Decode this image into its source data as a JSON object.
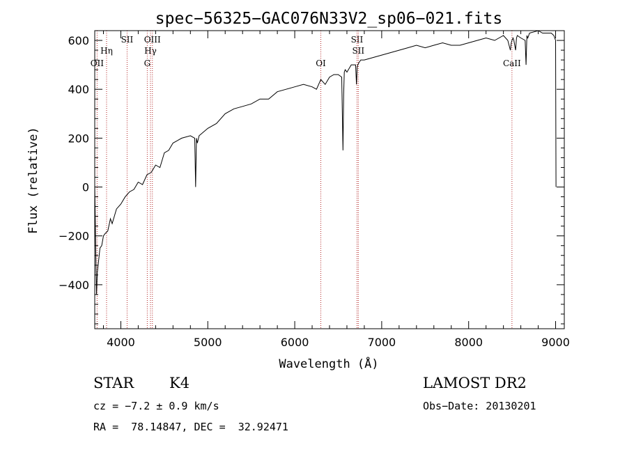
{
  "chart_data": {
    "type": "line",
    "title": "spec−56325−GAC076N33V2_sp06−021.fits",
    "xlabel": "Wavelength (Å)",
    "ylabel": "Flux (relative)",
    "xlim": [
      3700,
      9100
    ],
    "ylim": [
      -580,
      640
    ],
    "x_ticks": [
      4000,
      5000,
      6000,
      7000,
      8000,
      9000
    ],
    "y_ticks": [
      -400,
      -200,
      0,
      200,
      400,
      600
    ],
    "y_tick_labels": [
      "−400",
      "−200",
      "0",
      "200",
      "400",
      "600"
    ],
    "grid": false,
    "series": [
      {
        "x": [
          3700,
          3710,
          3720,
          3730,
          3745,
          3760,
          3780,
          3800,
          3820,
          3850,
          3880,
          3900,
          3950,
          4000,
          4050,
          4100,
          4150,
          4200,
          4250,
          4300,
          4350,
          4400,
          4450,
          4500,
          4550,
          4600,
          4700,
          4800,
          4850,
          4860,
          4870,
          4880,
          4900,
          5000,
          5100,
          5200,
          5300,
          5400,
          5500,
          5600,
          5700,
          5800,
          5900,
          6000,
          6100,
          6200,
          6250,
          6300,
          6350,
          6400,
          6450,
          6500,
          6540,
          6555,
          6563,
          6570,
          6580,
          6600,
          6650,
          6700,
          6710,
          6718,
          6725,
          6740,
          6760,
          6800,
          6900,
          7000,
          7100,
          7200,
          7300,
          7400,
          7500,
          7600,
          7700,
          7800,
          7900,
          8000,
          8100,
          8200,
          8300,
          8400,
          8450,
          8480,
          8490,
          8498,
          8510,
          8520,
          8540,
          8550,
          8560,
          8600,
          8650,
          8660,
          8670,
          8680,
          8700,
          8800,
          8850,
          8900,
          8950,
          8980,
          9000,
          9005
        ],
        "y": [
          10,
          -220,
          -440,
          -350,
          -300,
          -250,
          -240,
          -200,
          -190,
          -180,
          -130,
          -150,
          -90,
          -70,
          -40,
          -20,
          -10,
          20,
          10,
          50,
          60,
          90,
          80,
          140,
          150,
          180,
          200,
          210,
          200,
          0,
          200,
          180,
          210,
          240,
          260,
          300,
          320,
          330,
          340,
          360,
          360,
          390,
          400,
          410,
          420,
          410,
          400,
          440,
          420,
          450,
          460,
          460,
          450,
          150,
          380,
          470,
          480,
          470,
          500,
          500,
          420,
          490,
          500,
          510,
          520,
          520,
          530,
          540,
          550,
          560,
          570,
          580,
          570,
          580,
          590,
          580,
          580,
          590,
          600,
          610,
          600,
          620,
          600,
          560,
          590,
          600,
          610,
          600,
          560,
          610,
          620,
          610,
          600,
          500,
          620,
          610,
          630,
          640,
          630,
          630,
          630,
          620,
          600,
          0
        ]
      }
    ],
    "line_markers": [
      {
        "x": 3727,
        "label": "OII",
        "row": 3
      },
      {
        "x": 3836,
        "label": "Hη",
        "row": 2
      },
      {
        "x": 4072,
        "label": "SII",
        "row": 1
      },
      {
        "x": 4304,
        "label": "G",
        "row": 3
      },
      {
        "x": 4341,
        "label": "Hγ",
        "row": 2
      },
      {
        "x": 4363,
        "label": "OIII",
        "row": 1
      },
      {
        "x": 6300,
        "label": "OI",
        "row": 3
      },
      {
        "x": 6716,
        "label": "SII",
        "row": 1
      },
      {
        "x": 6731,
        "label": "SII",
        "row": 2
      },
      {
        "x": 8498,
        "label": "CaII",
        "row": 3
      }
    ]
  },
  "info": {
    "class": "STAR",
    "subclass": "K4",
    "survey": "LAMOST DR2",
    "cz": "cz = −7.2 ± 0.9 km/s",
    "obs_date": "Obs−Date: 20130201",
    "radec": "RA =  78.14847, DEC =  32.92471"
  }
}
